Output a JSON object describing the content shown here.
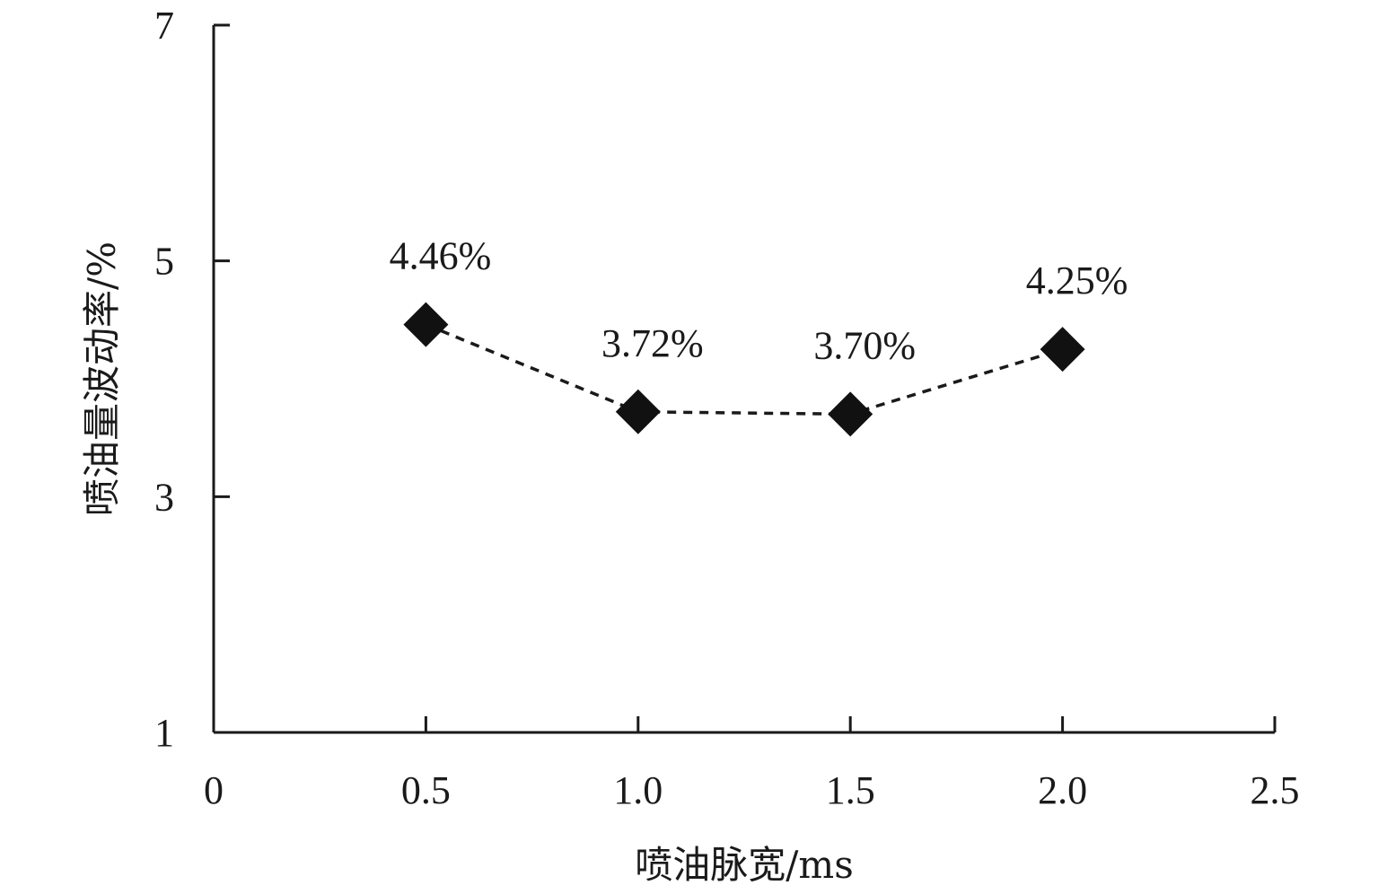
{
  "chart_data": {
    "type": "line",
    "title": "",
    "xlabel": "喷油脉宽/ms",
    "ylabel": "喷油量波动率/%",
    "xlim": [
      0,
      2.5
    ],
    "ylim": [
      1,
      7
    ],
    "x_ticks": [
      "0",
      "0.5",
      "1.0",
      "1.5",
      "2.0",
      "2.5"
    ],
    "y_ticks": [
      "1",
      "3",
      "5",
      "7"
    ],
    "grid": false,
    "series": [
      {
        "marker": "diamond",
        "line_style": "dashed",
        "color": "#111111",
        "points": [
          {
            "x": 0.5,
            "y": 4.46,
            "label": "4.46%"
          },
          {
            "x": 1.0,
            "y": 3.72,
            "label": "3.72%"
          },
          {
            "x": 1.5,
            "y": 3.7,
            "label": "3.70%"
          },
          {
            "x": 2.0,
            "y": 4.25,
            "label": "4.25%"
          }
        ]
      }
    ]
  }
}
